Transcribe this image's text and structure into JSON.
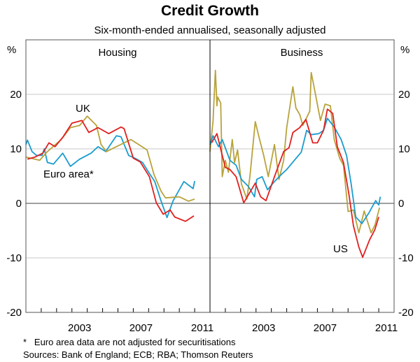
{
  "chart_data": {
    "type": "line",
    "title": "Credit Growth",
    "subtitle": "Six-month-ended annualised, seasonally adjusted",
    "ylabel_left": "%",
    "ylabel_right": "%",
    "ylim": [
      -20,
      30
    ],
    "yticks": [
      -20,
      -10,
      0,
      10,
      20
    ],
    "xlim": [
      2000,
      2012
    ],
    "xtick_labels": [
      "2003",
      "2007",
      "2011"
    ],
    "grid": true,
    "colors": {
      "UK": "#b8a33b",
      "Euro area": "#1a9ccf",
      "US": "#e0201f",
      "grid": "#c8c8c8",
      "zero": "#808080"
    },
    "panels": [
      {
        "title": "Housing",
        "series": [
          {
            "name": "Euro area*",
            "key": "Euro area",
            "label_shown": true,
            "x": [
              2000.0,
              2000.1,
              2000.4,
              2000.7,
              2001.05,
              2001.2,
              2001.4,
              2001.8,
              2002.4,
              2002.9,
              2003.5,
              2004.25,
              2004.7,
              2005.2,
              2005.9,
              2006.2,
              2006.7,
              2007.1,
              2007.6,
              2008.0,
              2008.4,
              2008.8,
              2009.2,
              2009.6,
              2010.3,
              2010.9,
              2011.0
            ],
            "y": [
              10.8,
              11.6,
              9.5,
              8.8,
              8.8,
              10.0,
              7.5,
              7.2,
              9.2,
              6.8,
              8.1,
              9.2,
              10.4,
              9.5,
              12.4,
              12.2,
              8.8,
              8.3,
              7.5,
              5.7,
              4.0,
              0.5,
              -2.6,
              0.5,
              4.0,
              2.7,
              4.1
            ]
          },
          {
            "name": "UK",
            "key": "UK",
            "label_shown": true,
            "x": [
              2000.0,
              2000.9,
              2001.4,
              2002.3,
              2002.9,
              2003.5,
              2004.0,
              2004.6,
              2004.9,
              2005.25,
              2005.75,
              2006.4,
              2006.85,
              2007.4,
              2007.9,
              2008.35,
              2008.8,
              2009.1,
              2010.0,
              2010.6,
              2011.0
            ],
            "y": [
              8.5,
              7.9,
              9.5,
              11.7,
              13.9,
              14.3,
              16.0,
              14.3,
              10.8,
              9.5,
              10.2,
              11.1,
              11.7,
              10.7,
              9.8,
              5.3,
              2.3,
              1.0,
              1.2,
              0.4,
              0.8
            ]
          },
          {
            "name": "US",
            "key": "US",
            "label_shown": false,
            "x": [
              2000.1,
              2000.6,
              2001.1,
              2001.5,
              2001.9,
              2002.4,
              2003.0,
              2003.65,
              2004.1,
              2004.7,
              2005.4,
              2006.2,
              2006.4,
              2007.0,
              2007.45,
              2008.05,
              2008.5,
              2008.95,
              2009.4,
              2009.7,
              2010.4,
              2010.95
            ],
            "y": [
              8.1,
              8.5,
              9.2,
              11.1,
              10.4,
              12.1,
              14.7,
              15.2,
              13.0,
              13.9,
              12.8,
              14.0,
              13.7,
              8.3,
              7.6,
              4.9,
              0.1,
              -2.0,
              -1.2,
              -2.5,
              -3.3,
              -2.3
            ]
          }
        ]
      },
      {
        "title": "Business",
        "series": [
          {
            "name": "UK",
            "key": "UK",
            "label_shown": false,
            "x": [
              2000.0,
              2000.2,
              2000.35,
              2000.45,
              2000.5,
              2000.7,
              2000.8,
              2001.0,
              2001.2,
              2001.45,
              2001.6,
              2001.8,
              2002.05,
              2002.4,
              2002.6,
              2002.95,
              2003.2,
              2003.5,
              2003.8,
              2004.2,
              2004.5,
              2004.8,
              2005.0,
              2005.4,
              2005.6,
              2005.85,
              2006.05,
              2006.5,
              2006.6,
              2006.85,
              2007.2,
              2007.5,
              2007.85,
              2008.1,
              2008.45,
              2008.7,
              2009.0,
              2009.35,
              2009.7,
              2010.05,
              2010.5,
              2010.75,
              2011.05
            ],
            "y": [
              9.5,
              15.2,
              24.4,
              17.9,
              19.5,
              18.4,
              4.9,
              7.9,
              5.7,
              11.7,
              7.5,
              9.8,
              3.6,
              0.8,
              4.9,
              15.0,
              12.1,
              8.8,
              4.9,
              10.8,
              4.4,
              7.9,
              13.9,
              21.4,
              17.5,
              16.3,
              14.3,
              16.9,
              24.0,
              20.4,
              15.2,
              18.2,
              17.9,
              11.7,
              8.3,
              7.0,
              -1.5,
              -1.2,
              -5.4,
              -1.4,
              -5.4,
              -4.0,
              -0.8
            ]
          },
          {
            "name": "Euro area",
            "key": "Euro area",
            "label_shown": false,
            "x": [
              2000.0,
              2000.2,
              2000.55,
              2000.8,
              2001.3,
              2001.7,
              2002.05,
              2002.5,
              2002.9,
              2003.05,
              2003.4,
              2003.75,
              2004.2,
              2004.65,
              2005.0,
              2005.5,
              2005.95,
              2006.3,
              2006.6,
              2007.1,
              2007.4,
              2007.65,
              2008.1,
              2008.55,
              2008.9,
              2009.2,
              2009.5,
              2009.9,
              2010.35,
              2010.8,
              2011.0,
              2011.1
            ],
            "y": [
              10.8,
              12.4,
              10.4,
              11.7,
              7.9,
              7.0,
              4.4,
              3.1,
              1.2,
              4.4,
              4.9,
              2.5,
              4.0,
              5.3,
              6.2,
              7.9,
              9.4,
              13.4,
              12.6,
              12.8,
              13.4,
              15.6,
              14.0,
              11.7,
              8.8,
              3.6,
              -2.5,
              -3.7,
              -1.8,
              0.5,
              -0.3,
              1.2
            ]
          },
          {
            "name": "US",
            "key": "US",
            "label_shown": true,
            "x": [
              2000.1,
              2000.45,
              2000.8,
              2001.0,
              2001.3,
              2001.7,
              2002.2,
              2002.95,
              2003.3,
              2003.65,
              2004.2,
              2004.8,
              2005.15,
              2005.4,
              2005.85,
              2006.25,
              2006.7,
              2007.0,
              2007.4,
              2007.65,
              2008.0,
              2008.3,
              2008.7,
              2009.05,
              2009.35,
              2009.7,
              2009.95,
              2010.4,
              2010.75,
              2011.0
            ],
            "y": [
              11.1,
              12.8,
              8.8,
              6.6,
              6.2,
              4.9,
              0.1,
              3.7,
              1.2,
              0.5,
              4.9,
              9.5,
              10.2,
              13.0,
              13.9,
              15.4,
              11.1,
              11.1,
              13.4,
              17.3,
              16.5,
              10.4,
              7.5,
              1.8,
              -4.1,
              -8.0,
              -9.9,
              -6.7,
              -4.8,
              -2.5
            ]
          }
        ]
      }
    ],
    "footnote": "*   Euro area data are not adjusted for securitisations",
    "sources": "Sources: Bank of England; ECB; RBA; Thomson Reuters"
  }
}
